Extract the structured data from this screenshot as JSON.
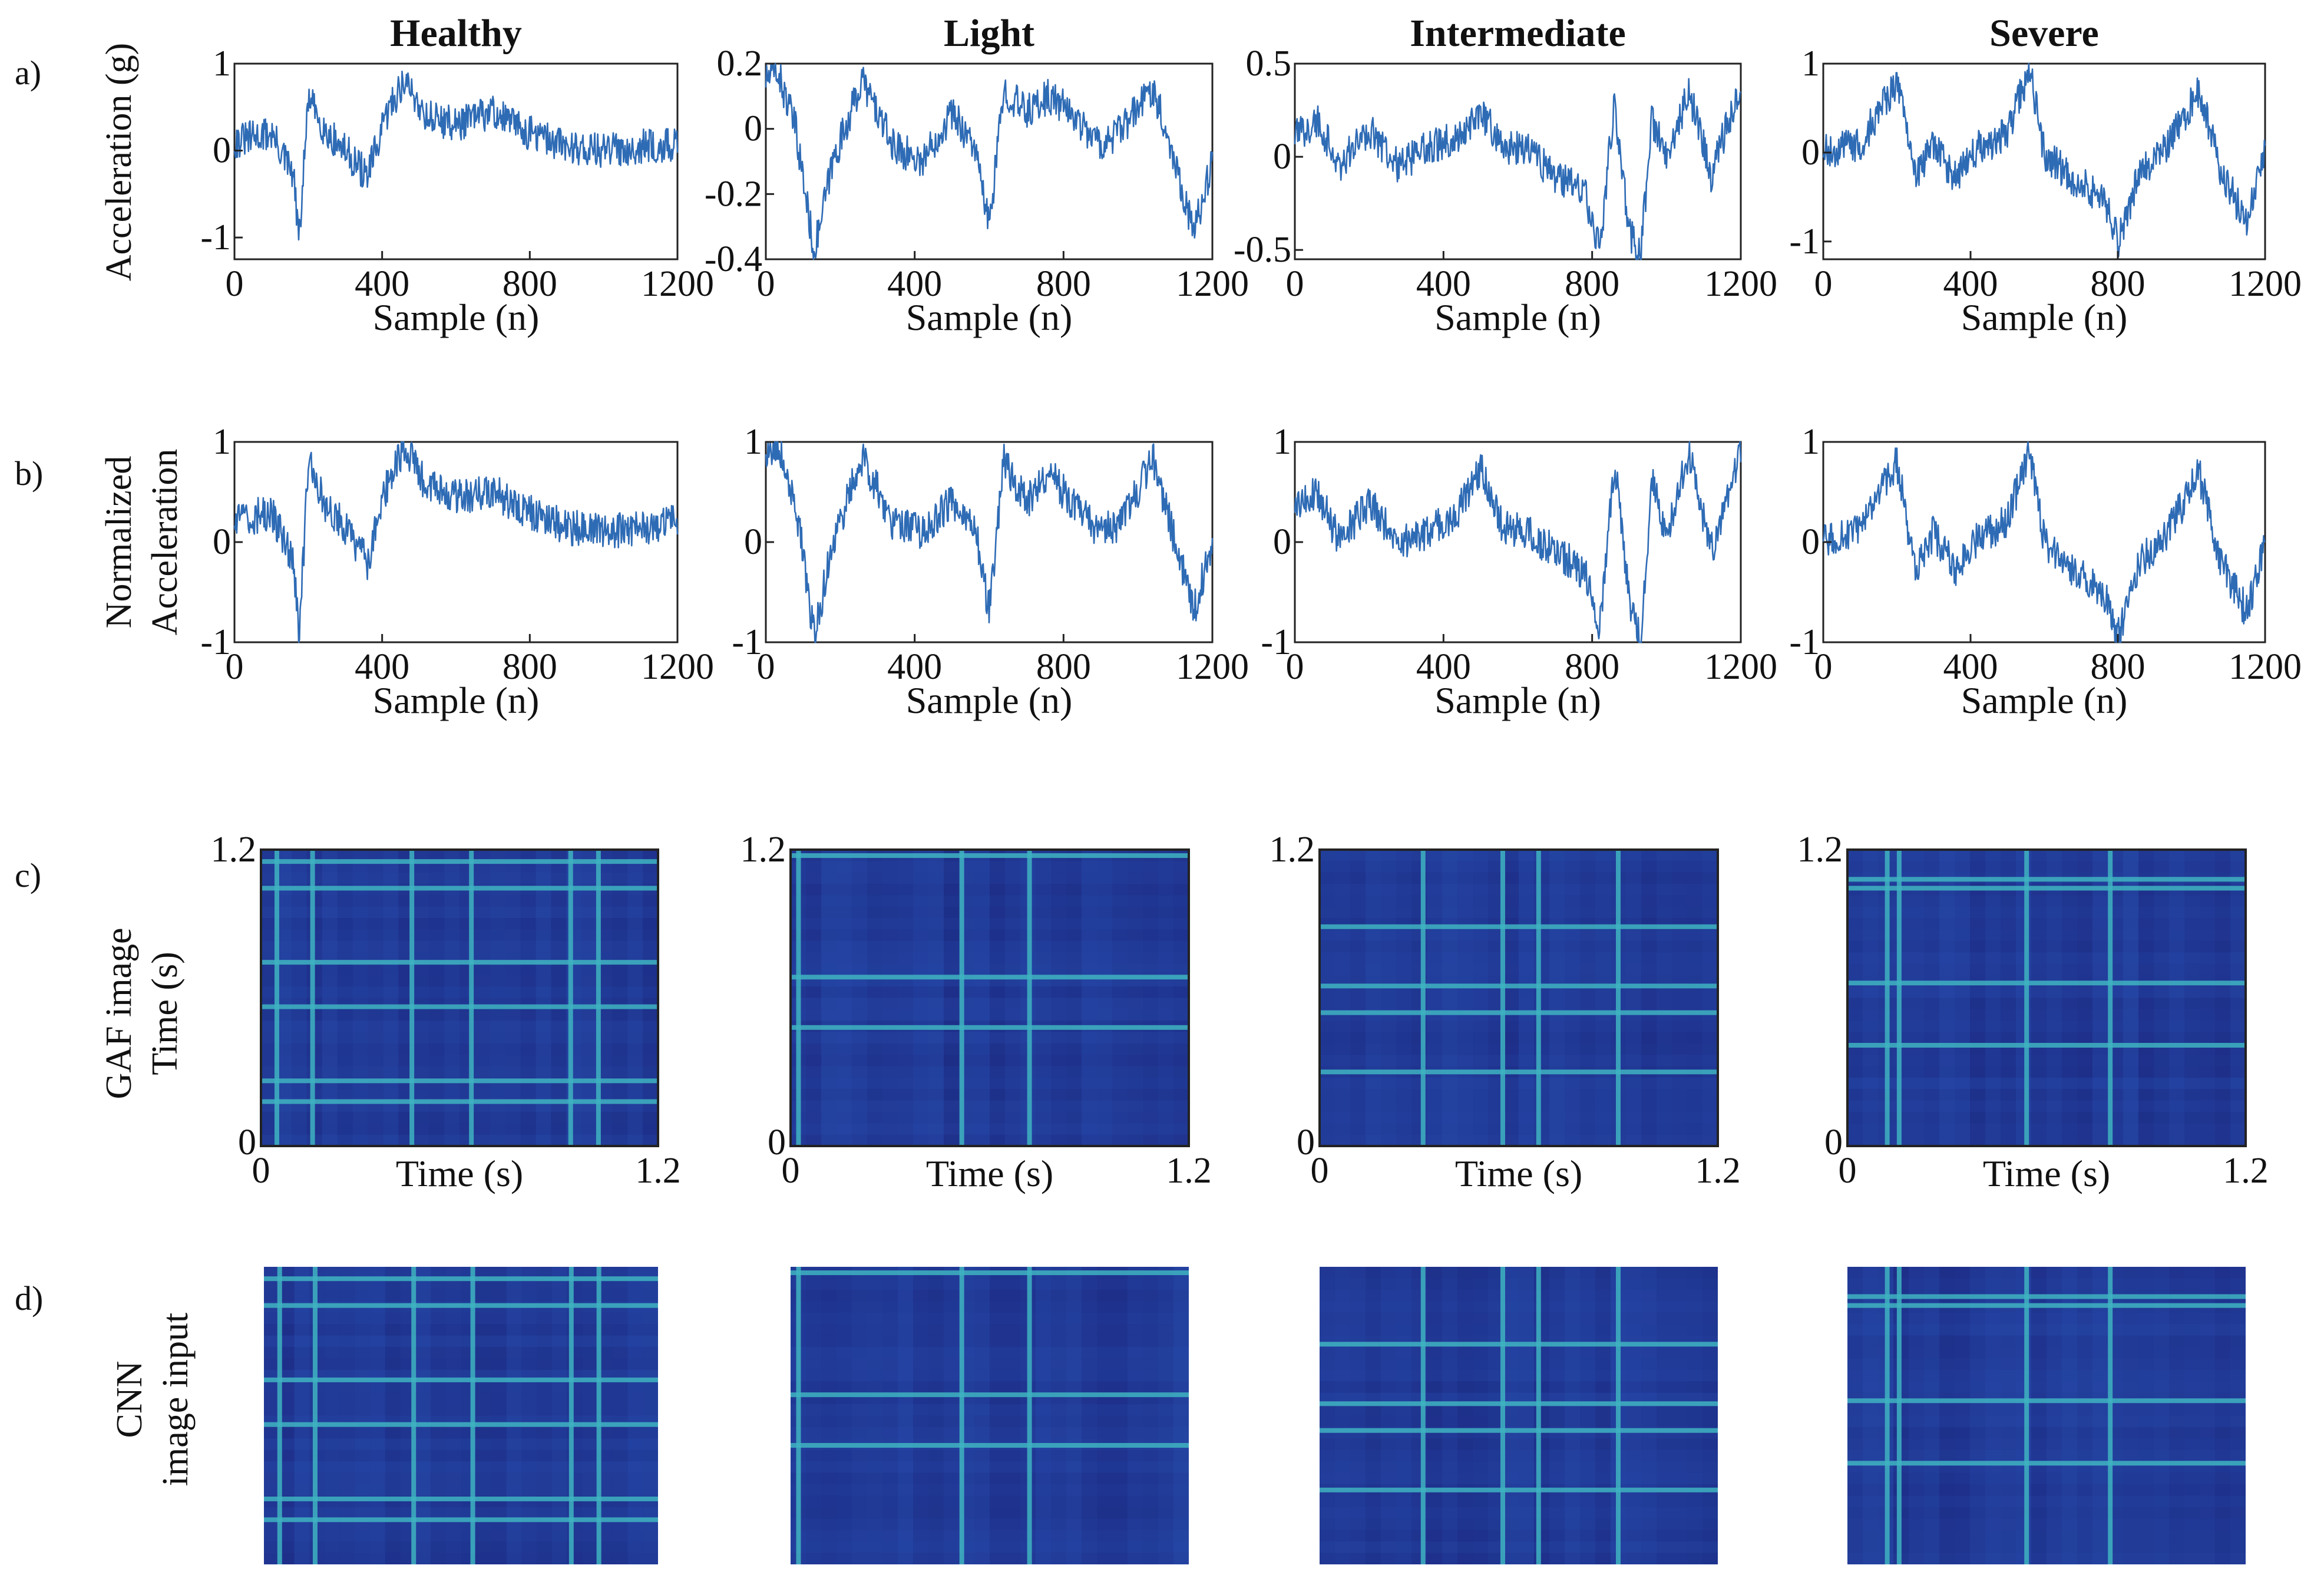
{
  "figure": {
    "row_labels": [
      "a)",
      "b)",
      "c)",
      "d)"
    ],
    "row_a_ylabel": "Acceleration (g)",
    "row_b_ylabel_line1": "Normalized",
    "row_b_ylabel_line2": "Acceleration",
    "row_c_ylabel_line1": "GAF image",
    "row_c_ylabel_line2": "Time (s)",
    "row_d_ylabel_line1": "CNN",
    "row_d_ylabel_line2": "image input"
  },
  "colors": {
    "line": "#2e6bb5",
    "axis": "#222222",
    "heatmap_low": "#1a237a",
    "heatmap_mid": "#2a55b8",
    "heatmap_high": "#46d4c4"
  },
  "chart_data": [
    {
      "id": "a-healthy",
      "type": "line",
      "title": "Healthy",
      "xlabel": "Sample (n)",
      "ylabel": "Acceleration (g)",
      "xlim": [
        0,
        1200
      ],
      "ylim": [
        -1.25,
        1
      ],
      "xticks": [
        "0",
        "400",
        "800",
        "1200"
      ],
      "yticks": [
        "1",
        "0",
        "-1"
      ],
      "series": [
        {
          "name": "acceleration",
          "x": [
            0,
            100,
            160,
            175,
            200,
            250,
            300,
            360,
            420,
            460,
            520,
            600,
            700,
            800,
            900,
            1000,
            1100,
            1200
          ],
          "values": [
            0.1,
            0.2,
            -0.3,
            -1.05,
            0.6,
            0.2,
            0.0,
            -0.3,
            0.5,
            0.8,
            0.4,
            0.3,
            0.45,
            0.2,
            0.05,
            0.0,
            0.05,
            0.05
          ]
        }
      ]
    },
    {
      "id": "a-light",
      "type": "line",
      "title": "Light",
      "xlabel": "Sample (n)",
      "xlim": [
        0,
        1200
      ],
      "ylim": [
        -0.4,
        0.2
      ],
      "xticks": [
        "0",
        "400",
        "800",
        "1200"
      ],
      "yticks": [
        "0.2",
        "0",
        "-0.2",
        "-0.4"
      ],
      "series": [
        {
          "name": "acceleration",
          "x": [
            0,
            30,
            80,
            130,
            180,
            260,
            340,
            420,
            500,
            560,
            600,
            640,
            700,
            760,
            820,
            900,
            960,
            1040,
            1100,
            1150,
            1200
          ],
          "values": [
            0.15,
            0.18,
            0.0,
            -0.38,
            -0.1,
            0.15,
            -0.05,
            -0.1,
            0.05,
            -0.05,
            -0.3,
            0.12,
            0.05,
            0.1,
            0.05,
            -0.05,
            0.0,
            0.13,
            -0.1,
            -0.32,
            -0.1
          ]
        }
      ]
    },
    {
      "id": "a-intermediate",
      "type": "line",
      "title": "Intermediate",
      "xlabel": "Sample (n)",
      "xlim": [
        0,
        1200
      ],
      "ylim": [
        -0.55,
        0.5
      ],
      "xticks": [
        "0",
        "400",
        "800",
        "1200"
      ],
      "yticks": [
        "0.5",
        "0",
        "-0.5"
      ],
      "series": [
        {
          "name": "acceleration",
          "x": [
            0,
            60,
            120,
            200,
            280,
            360,
            440,
            500,
            560,
            620,
            700,
            780,
            820,
            860,
            900,
            930,
            960,
            1000,
            1060,
            1120,
            1200
          ],
          "values": [
            0.1,
            0.2,
            -0.05,
            0.15,
            -0.05,
            0.05,
            0.1,
            0.25,
            0.05,
            0.05,
            -0.1,
            -0.2,
            -0.5,
            0.3,
            -0.4,
            -0.55,
            0.2,
            0.0,
            0.35,
            -0.1,
            0.4
          ]
        }
      ]
    },
    {
      "id": "a-severe",
      "type": "line",
      "title": "Severe",
      "xlabel": "Sample (n)",
      "xlim": [
        0,
        1200
      ],
      "ylim": [
        -1.2,
        1
      ],
      "xticks": [
        "0",
        "400",
        "800",
        "1200"
      ],
      "yticks": [
        "1",
        "0",
        "-1"
      ],
      "series": [
        {
          "name": "acceleration",
          "x": [
            0,
            100,
            200,
            250,
            300,
            360,
            420,
            500,
            560,
            600,
            680,
            760,
            800,
            860,
            920,
            980,
            1020,
            1080,
            1150,
            1200
          ],
          "values": [
            0.0,
            0.1,
            0.8,
            -0.3,
            0.1,
            -0.3,
            0.05,
            0.2,
            0.95,
            0.0,
            -0.3,
            -0.5,
            -1.0,
            -0.2,
            0.0,
            0.4,
            0.7,
            -0.2,
            -0.8,
            0.0
          ]
        }
      ]
    },
    {
      "id": "b-healthy",
      "type": "line",
      "xlabel": "Sample (n)",
      "ylabel": "Normalized Acceleration",
      "xlim": [
        0,
        1200
      ],
      "ylim": [
        -1,
        1
      ],
      "xticks": [
        "0",
        "400",
        "800",
        "1200"
      ],
      "yticks": [
        "1",
        "0",
        "-1"
      ],
      "series": [
        {
          "name": "normalized acceleration",
          "x": [
            0,
            100,
            160,
            175,
            200,
            250,
            300,
            360,
            420,
            460,
            520,
            600,
            700,
            800,
            900,
            1000,
            1100,
            1200
          ],
          "values": [
            0.2,
            0.3,
            -0.2,
            -1.0,
            0.8,
            0.35,
            0.15,
            -0.2,
            0.65,
            0.95,
            0.55,
            0.45,
            0.5,
            0.3,
            0.15,
            0.1,
            0.15,
            0.2
          ]
        }
      ]
    },
    {
      "id": "b-light",
      "type": "line",
      "xlabel": "Sample (n)",
      "xlim": [
        0,
        1200
      ],
      "ylim": [
        -1,
        1
      ],
      "xticks": [
        "0",
        "400",
        "800",
        "1200"
      ],
      "yticks": [
        "1",
        "0",
        "-1"
      ],
      "series": [
        {
          "name": "normalized acceleration",
          "x": [
            0,
            30,
            80,
            130,
            180,
            260,
            340,
            420,
            500,
            560,
            600,
            640,
            700,
            760,
            820,
            900,
            960,
            1040,
            1100,
            1150,
            1200
          ],
          "values": [
            0.9,
            1.0,
            0.4,
            -0.95,
            0.0,
            0.85,
            0.2,
            0.1,
            0.4,
            0.2,
            -0.7,
            0.8,
            0.4,
            0.7,
            0.4,
            0.1,
            0.2,
            0.85,
            0.0,
            -0.7,
            0.0
          ]
        }
      ]
    },
    {
      "id": "b-intermediate",
      "type": "line",
      "xlabel": "Sample (n)",
      "xlim": [
        0,
        1200
      ],
      "ylim": [
        -1,
        1
      ],
      "xticks": [
        "0",
        "400",
        "800",
        "1200"
      ],
      "yticks": [
        "1",
        "0",
        "-1"
      ],
      "series": [
        {
          "name": "normalized acceleration",
          "x": [
            0,
            60,
            120,
            200,
            280,
            360,
            440,
            500,
            560,
            620,
            700,
            780,
            820,
            860,
            900,
            930,
            960,
            1000,
            1060,
            1120,
            1200
          ],
          "values": [
            0.3,
            0.5,
            0.0,
            0.4,
            0.0,
            0.1,
            0.3,
            0.75,
            0.15,
            0.1,
            -0.1,
            -0.3,
            -0.9,
            0.8,
            -0.6,
            -1.0,
            0.6,
            0.1,
            0.9,
            -0.1,
            0.95
          ]
        }
      ]
    },
    {
      "id": "b-severe",
      "type": "line",
      "xlabel": "Sample (n)",
      "xlim": [
        0,
        1200
      ],
      "ylim": [
        -1,
        1
      ],
      "xticks": [
        "0",
        "400",
        "800",
        "1200"
      ],
      "yticks": [
        "1",
        "0",
        "-1"
      ],
      "series": [
        {
          "name": "normalized acceleration",
          "x": [
            0,
            100,
            200,
            250,
            300,
            360,
            420,
            500,
            560,
            600,
            680,
            760,
            800,
            860,
            920,
            980,
            1020,
            1080,
            1150,
            1200
          ],
          "values": [
            0.0,
            0.1,
            0.8,
            -0.3,
            0.1,
            -0.3,
            0.05,
            0.2,
            0.95,
            0.0,
            -0.3,
            -0.5,
            -0.95,
            -0.2,
            0.0,
            0.4,
            0.7,
            -0.2,
            -0.7,
            0.0
          ]
        }
      ]
    },
    {
      "id": "c-healthy",
      "type": "heatmap",
      "xlabel": "Time (s)",
      "ylabel": "Time (s)",
      "xlim": [
        0,
        1.2
      ],
      "ylim": [
        0,
        1.2
      ],
      "xticks": [
        "0",
        "1.2"
      ],
      "yticks": [
        "1.2",
        "0"
      ],
      "bright_lines": [
        0.04,
        0.13,
        0.38,
        0.53,
        0.78,
        0.85
      ]
    },
    {
      "id": "c-light",
      "type": "heatmap",
      "xlabel": "Time (s)",
      "xlim": [
        0,
        1.2
      ],
      "ylim": [
        0,
        1.2
      ],
      "xticks": [
        "0",
        "1.2"
      ],
      "yticks": [
        "1.2",
        "0"
      ],
      "bright_lines": [
        0.02,
        0.43,
        0.6
      ]
    },
    {
      "id": "c-intermediate",
      "type": "heatmap",
      "xlabel": "Time (s)",
      "xlim": [
        0,
        1.2
      ],
      "ylim": [
        0,
        1.2
      ],
      "xticks": [
        "0",
        "1.2"
      ],
      "yticks": [
        "1.2",
        "0"
      ],
      "bright_lines": [
        0.26,
        0.46,
        0.55,
        0.75
      ]
    },
    {
      "id": "c-severe",
      "type": "heatmap",
      "xlabel": "Time (s)",
      "xlim": [
        0,
        1.2
      ],
      "ylim": [
        0,
        1.2
      ],
      "xticks": [
        "0",
        "1.2"
      ],
      "yticks": [
        "1.2",
        "0"
      ],
      "bright_lines": [
        0.1,
        0.13,
        0.45,
        0.66
      ]
    },
    {
      "id": "d-healthy",
      "type": "heatmap",
      "bright_lines": [
        0.04,
        0.13,
        0.38,
        0.53,
        0.78,
        0.85
      ]
    },
    {
      "id": "d-light",
      "type": "heatmap",
      "bright_lines": [
        0.02,
        0.43,
        0.6
      ]
    },
    {
      "id": "d-intermediate",
      "type": "heatmap",
      "bright_lines": [
        0.26,
        0.46,
        0.55,
        0.75
      ]
    },
    {
      "id": "d-severe",
      "type": "heatmap",
      "bright_lines": [
        0.1,
        0.13,
        0.45,
        0.66
      ]
    }
  ]
}
